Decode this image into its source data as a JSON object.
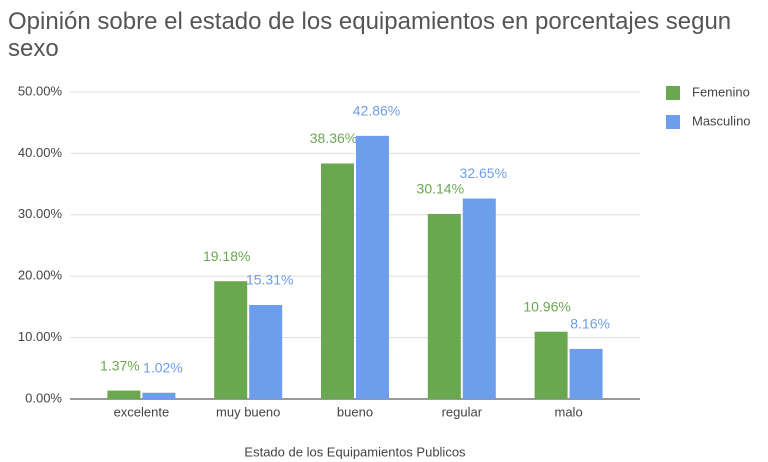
{
  "chart_data": {
    "type": "bar",
    "title": "Opinión sobre el estado de los equipamientos en porcentajes segun sexo",
    "x_label": "Estado de los Equipamientos Publicos",
    "categories": [
      "excelente",
      "muy bueno",
      "bueno",
      "regular",
      "malo"
    ],
    "series": [
      {
        "name": "Femenino",
        "color": "#6aa84f",
        "values": [
          1.37,
          19.18,
          38.36,
          30.14,
          10.96
        ],
        "value_labels": [
          "1.37%",
          "19.18%",
          "38.36%",
          "30.14%",
          "10.96%"
        ]
      },
      {
        "name": "Masculino",
        "color": "#6d9eeb",
        "values": [
          1.02,
          15.31,
          42.86,
          32.65,
          8.16
        ],
        "value_labels": [
          "1.02%",
          "15.31%",
          "42.86%",
          "32.65%",
          "8.16%"
        ]
      }
    ],
    "ylim": [
      0,
      50
    ],
    "yticks": [
      {
        "value": 0,
        "label": "0.00%"
      },
      {
        "value": 10,
        "label": "10.00%"
      },
      {
        "value": 20,
        "label": "20.00%"
      },
      {
        "value": 30,
        "label": "30.00%"
      },
      {
        "value": 40,
        "label": "40.00%"
      },
      {
        "value": 50,
        "label": "50.00%"
      }
    ],
    "grid": true,
    "legend": "right"
  }
}
